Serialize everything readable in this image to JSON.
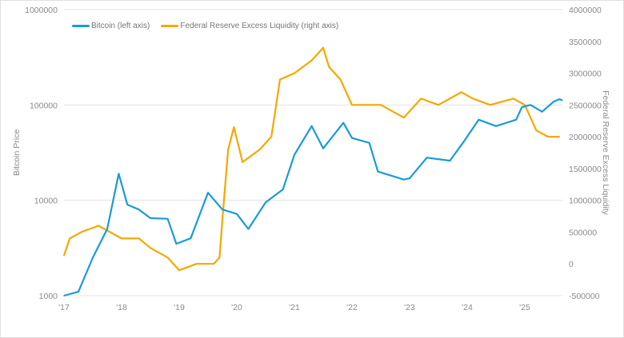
{
  "chart_data": {
    "type": "line",
    "xlabel": "",
    "ylabel": "Bitcoin Price",
    "y2label": "Federal Reserve Excess Liquidity",
    "x_ticks": [
      "'17",
      "'18",
      "'19",
      "'20",
      "'21",
      "'22",
      "'23",
      "'24",
      "'25"
    ],
    "x_range": [
      2017.0,
      2025.65
    ],
    "y_ticks": [
      "1000000",
      "100000",
      "10000",
      "1000"
    ],
    "y_scale": "log",
    "ylim": [
      1000,
      1000000
    ],
    "y2_ticks": [
      "4000000",
      "3500000",
      "3000000",
      "2500000",
      "2000000",
      "1500000",
      "1000000",
      "500000",
      "0",
      "-500000"
    ],
    "y2lim": [
      -500000,
      4000000
    ],
    "grid": "horizontal",
    "legend": "top-left",
    "series": [
      {
        "name": "Bitcoin (left axis)",
        "axis": "left",
        "color": "#1a9bd7",
        "x": [
          2017.0,
          2017.25,
          2017.5,
          2017.75,
          2017.95,
          2018.1,
          2018.3,
          2018.5,
          2018.8,
          2018.95,
          2019.2,
          2019.5,
          2019.75,
          2020.0,
          2020.2,
          2020.5,
          2020.8,
          2021.0,
          2021.3,
          2021.5,
          2021.85,
          2022.0,
          2022.3,
          2022.45,
          2022.9,
          2023.0,
          2023.3,
          2023.7,
          2023.95,
          2024.2,
          2024.5,
          2024.85,
          2024.95,
          2025.1,
          2025.3,
          2025.5,
          2025.6,
          2025.65
        ],
        "y": [
          1000,
          1100,
          2500,
          5000,
          19000,
          9000,
          8000,
          6500,
          6400,
          3500,
          4000,
          12000,
          8000,
          7200,
          5000,
          9500,
          13000,
          30000,
          60000,
          35000,
          65000,
          45000,
          40000,
          20000,
          16500,
          17000,
          28000,
          26000,
          42000,
          70000,
          60000,
          70000,
          95000,
          100000,
          85000,
          108000,
          115000,
          112000
        ]
      },
      {
        "name": "Federal Reserve Excess Liquidity (right axis)",
        "axis": "right",
        "color": "#f5a800",
        "x": [
          2017.0,
          2017.1,
          2017.3,
          2017.6,
          2018.0,
          2018.3,
          2018.5,
          2018.8,
          2019.0,
          2019.3,
          2019.6,
          2019.7,
          2019.75,
          2019.85,
          2019.95,
          2020.1,
          2020.4,
          2020.6,
          2020.75,
          2021.0,
          2021.3,
          2021.5,
          2021.6,
          2021.8,
          2022.0,
          2022.5,
          2022.9,
          2023.2,
          2023.5,
          2023.9,
          2024.1,
          2024.4,
          2024.8,
          2025.0,
          2025.2,
          2025.4,
          2025.6
        ],
        "y": [
          130000,
          400000,
          500000,
          600000,
          400000,
          400000,
          250000,
          100000,
          -100000,
          0,
          0,
          100000,
          700000,
          1800000,
          2150000,
          1600000,
          1800000,
          2000000,
          2900000,
          3000000,
          3200000,
          3400000,
          3100000,
          2900000,
          2500000,
          2500000,
          2300000,
          2600000,
          2500000,
          2700000,
          2600000,
          2500000,
          2600000,
          2500000,
          2100000,
          2000000,
          2000000
        ]
      }
    ]
  }
}
